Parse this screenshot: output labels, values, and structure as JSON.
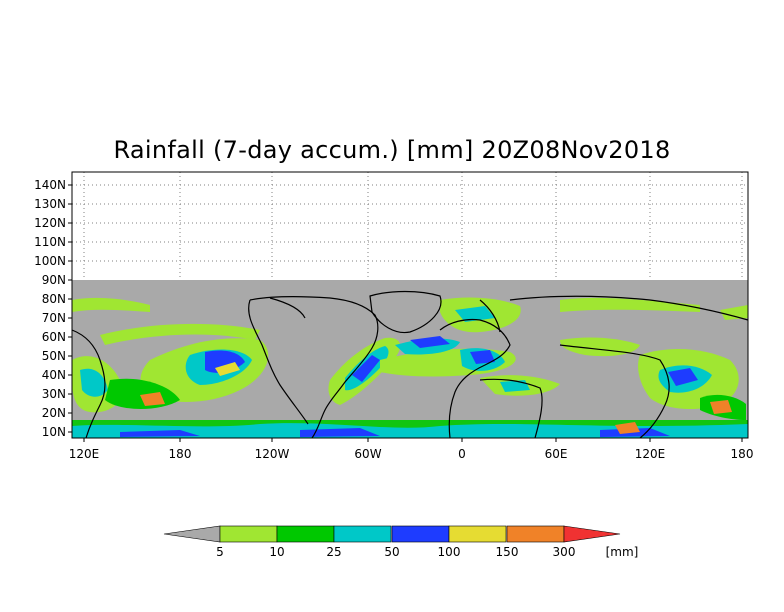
{
  "title": "Rainfall (7-day accum.) [mm] 20Z08Nov2018",
  "axes": {
    "y_ticks": [
      "140N",
      "130N",
      "120N",
      "110N",
      "100N",
      "90N",
      "80N",
      "70N",
      "60N",
      "50N",
      "40N",
      "30N",
      "20N",
      "10N"
    ],
    "x_ticks": [
      "120E",
      "180",
      "120W",
      "60W",
      "0",
      "60E",
      "120E",
      "180"
    ]
  },
  "legend": {
    "labels": [
      "5",
      "10",
      "25",
      "50",
      "100",
      "150",
      "300"
    ],
    "unit": "[mm]",
    "colors": [
      "#a9a9a9",
      "#a0e632",
      "#00c800",
      "#00c8c8",
      "#1e3cff",
      "#e6dc32",
      "#f08228",
      "#f03232"
    ]
  },
  "colors": {
    "no_rain": "#a9a9a9",
    "coastline": "#000000",
    "grid": "#808080"
  }
}
